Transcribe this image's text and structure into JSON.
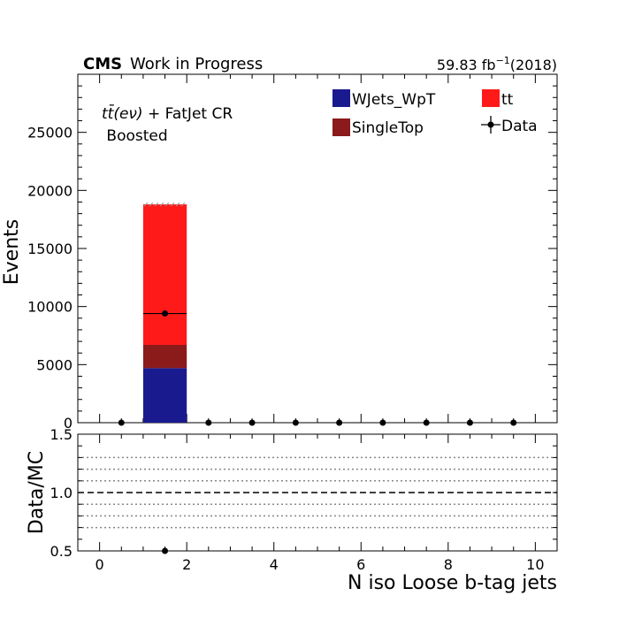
{
  "header": {
    "experiment": "CMS",
    "status": "Work in Progress",
    "lumi": "59.83 fb",
    "lumi_exp": "−1",
    "year": "(2018)"
  },
  "region": {
    "line1_pre": "t",
    "line1_mid": "t̄",
    "line1_paren": "(eν)",
    "line1_post": " + FatJet CR",
    "line2": " Boosted"
  },
  "legend": {
    "wjets": "WJets_WpT",
    "singletop": "SingleTop",
    "tt": "tt",
    "data": "Data"
  },
  "colors": {
    "wjets": "#1a1a8f",
    "singletop": "#8b1a1a",
    "tt": "#ff1a1a",
    "data": "#000000",
    "hatch": "#999999"
  },
  "chart_data": [
    {
      "type": "bar",
      "stacked": true,
      "xlabel": "",
      "ylabel": "Events",
      "xlim": [
        -0.5,
        10.5
      ],
      "ylim": [
        0,
        30000
      ],
      "yticks": [
        0,
        5000,
        10000,
        15000,
        20000,
        25000
      ],
      "bin_edges": [
        0,
        1,
        2,
        3,
        4,
        5,
        6,
        7,
        8,
        9,
        10
      ],
      "series": [
        {
          "name": "WJets_WpT",
          "values": [
            0,
            4700,
            0,
            0,
            0,
            0,
            0,
            0,
            0,
            0
          ]
        },
        {
          "name": "SingleTop",
          "values": [
            0,
            2000,
            0,
            0,
            0,
            0,
            0,
            0,
            0,
            0
          ]
        },
        {
          "name": "tt",
          "values": [
            0,
            12100,
            0,
            0,
            0,
            0,
            0,
            0,
            0,
            0
          ]
        }
      ],
      "data_points": {
        "name": "Data",
        "x": [
          0.5,
          1.5,
          2.5,
          3.5,
          4.5,
          5.5,
          6.5,
          7.5,
          8.5,
          9.5
        ],
        "y": [
          0,
          9400,
          0,
          0,
          0,
          0,
          0,
          0,
          0,
          0
        ]
      }
    },
    {
      "type": "scatter",
      "xlabel": "N iso Loose b-tag jets",
      "ylabel": "Data/MC",
      "xlim": [
        -0.5,
        10.5
      ],
      "ylim": [
        0.5,
        1.5
      ],
      "xticks": [
        0,
        2,
        4,
        6,
        8,
        10
      ],
      "yticks": [
        "0.5",
        "1.0",
        "1.5"
      ],
      "reference_line": 1.0,
      "dotted_lines": [
        0.7,
        0.8,
        0.9,
        1.1,
        1.2,
        1.3
      ],
      "x": [
        1.5
      ],
      "y": [
        0.5
      ]
    }
  ]
}
